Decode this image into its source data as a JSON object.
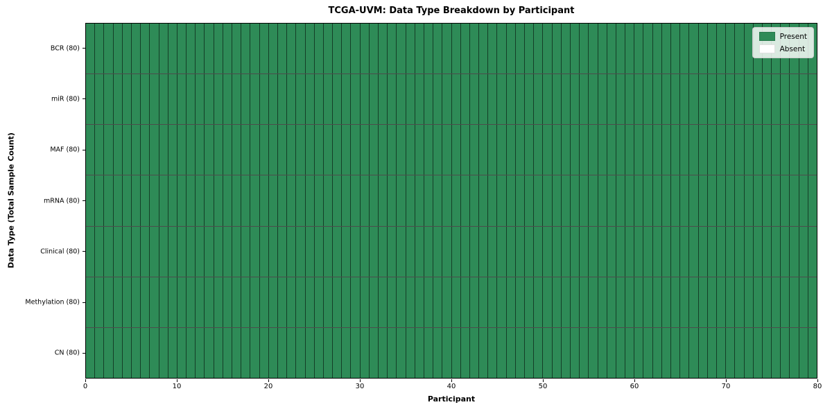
{
  "chart_data": {
    "type": "heatmap",
    "title": "TCGA-UVM: Data Type Breakdown by Participant",
    "xlabel": "Participant",
    "ylabel": "Data Type (Total Sample Count)",
    "x_range": [
      0,
      80
    ],
    "x_ticks": [
      0,
      10,
      20,
      30,
      40,
      50,
      60,
      70,
      80
    ],
    "n_participants": 80,
    "rows": [
      {
        "label": "BCR (80)",
        "present_count": 80,
        "absent_count": 0
      },
      {
        "label": "miR (80)",
        "present_count": 80,
        "absent_count": 0
      },
      {
        "label": "MAF (80)",
        "present_count": 80,
        "absent_count": 0
      },
      {
        "label": "mRNA (80)",
        "present_count": 80,
        "absent_count": 0
      },
      {
        "label": "Clinical (80)",
        "present_count": 80,
        "absent_count": 0
      },
      {
        "label": "Methylation (80)",
        "present_count": 80,
        "absent_count": 0
      },
      {
        "label": "CN (80)",
        "present_count": 80,
        "absent_count": 0
      }
    ],
    "legend": [
      {
        "label": "Present",
        "color": "#2e8b57"
      },
      {
        "label": "Absent",
        "color": "#ffffff"
      }
    ],
    "colors": {
      "present": "#2e8b57",
      "absent": "#ffffff",
      "cell_edge": "rgba(0,0,0,0.55)",
      "background": "#ffffff"
    },
    "legend_position": "upper right",
    "grid": "cell borders on"
  }
}
